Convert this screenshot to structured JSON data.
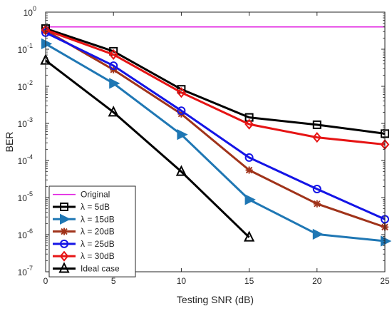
{
  "chart_data": {
    "type": "line",
    "y_scale": "log",
    "xlabel": "Testing SNR (dB)",
    "ylabel": "BER",
    "xlim": [
      0,
      25
    ],
    "ylim": [
      1e-07,
      1
    ],
    "x_ticks": [
      0,
      5,
      10,
      15,
      20,
      25
    ],
    "x_tick_labels": [
      "0",
      "5",
      "10",
      "15",
      "20",
      "25"
    ],
    "y_ticks": [
      {
        "value": 1.0,
        "base": "10",
        "exp": "0"
      },
      {
        "value": 0.1,
        "base": "10",
        "exp": "-1"
      },
      {
        "value": 0.01,
        "base": "10",
        "exp": "-2"
      },
      {
        "value": 0.001,
        "base": "10",
        "exp": "-3"
      },
      {
        "value": 0.0001,
        "base": "10",
        "exp": "-4"
      },
      {
        "value": 1e-05,
        "base": "10",
        "exp": "-5"
      },
      {
        "value": 1e-06,
        "base": "10",
        "exp": "-6"
      },
      {
        "value": 1e-07,
        "base": "10",
        "exp": "-7"
      }
    ],
    "grid": false,
    "legend_placement": "bottom-left",
    "series": [
      {
        "name": "Original",
        "color": "#e020e0",
        "marker": "none",
        "x": [
          0,
          25
        ],
        "y": [
          0.4,
          0.4
        ]
      },
      {
        "name": "λ = 5dB",
        "color": "#000000",
        "marker": "square",
        "x": [
          0,
          5,
          10,
          15,
          20,
          25
        ],
        "y": [
          0.36,
          0.088,
          0.0083,
          0.00145,
          0.00092,
          0.00053
        ]
      },
      {
        "name": "λ = 15dB",
        "color": "#1f77b4",
        "marker": "triangle-right",
        "x": [
          0,
          5,
          10,
          15,
          20,
          25
        ],
        "y": [
          0.14,
          0.012,
          0.0005,
          8.8e-06,
          1.03e-06,
          6.7e-07
        ]
      },
      {
        "name": "λ = 20dB",
        "color": "#a0331a",
        "marker": "asterisk",
        "x": [
          0,
          5,
          10,
          15,
          20,
          25
        ],
        "y": [
          0.32,
          0.028,
          0.0018,
          5.5e-05,
          6.8e-06,
          1.6e-06
        ]
      },
      {
        "name": "λ = 25dB",
        "color": "#1414e6",
        "marker": "circle",
        "x": [
          0,
          5,
          10,
          15,
          20,
          25
        ],
        "y": [
          0.28,
          0.036,
          0.0022,
          0.00012,
          1.7e-05,
          2.6e-06
        ]
      },
      {
        "name": "λ = 30dB",
        "color": "#e61414",
        "marker": "diamond",
        "x": [
          0,
          5,
          10,
          15,
          20,
          25
        ],
        "y": [
          0.33,
          0.072,
          0.0068,
          0.00095,
          0.00042,
          0.00027
        ]
      },
      {
        "name": "Ideal case",
        "color": "#000000",
        "marker": "triangle-up",
        "x": [
          0,
          5,
          10,
          15
        ],
        "y": [
          0.05,
          0.002,
          5e-05,
          8.5e-07
        ]
      }
    ]
  }
}
